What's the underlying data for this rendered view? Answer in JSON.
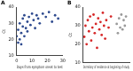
{
  "chart_data": [
    {
      "type": "scatter",
      "title": "A",
      "x_label": "Days from symptom onset to test",
      "y_label": "Ct",
      "x": [
        0,
        1,
        1,
        2,
        2,
        3,
        3,
        4,
        4,
        5,
        5,
        6,
        7,
        7,
        8,
        9,
        10,
        11,
        12,
        13,
        14,
        15,
        17,
        19,
        21,
        23,
        25,
        27
      ],
      "values": [
        22,
        18,
        26,
        20,
        30,
        17,
        24,
        28,
        33,
        22,
        35,
        27,
        31,
        25,
        34,
        29,
        36,
        32,
        27,
        35,
        33,
        30,
        36,
        34,
        37,
        31,
        35,
        33
      ],
      "color": "#2f4b8f",
      "xlim": [
        0,
        30
      ],
      "xticks": [
        0,
        10,
        20,
        30
      ],
      "ylim": [
        10,
        40
      ],
      "yticks": [
        10,
        20,
        30,
        40
      ],
      "grid": false,
      "marker": "circle"
    },
    {
      "type": "scatter",
      "title": "B",
      "x_label": "Dormitory of residence at beginning of study",
      "y_label": "Ct",
      "x": [
        1,
        2,
        3,
        4,
        5,
        6,
        7,
        8,
        9,
        10,
        11,
        12,
        13,
        14,
        15,
        16,
        17,
        18,
        19,
        20,
        22,
        24,
        29,
        30,
        31,
        32,
        33,
        34,
        35,
        36,
        37
      ],
      "values": [
        24,
        30,
        20,
        33,
        27,
        35,
        22,
        29,
        36,
        26,
        31,
        18,
        34,
        28,
        32,
        25,
        37,
        30,
        23,
        33,
        29,
        35,
        31,
        26,
        34,
        29,
        36,
        28,
        33,
        30,
        35
      ],
      "colors": [
        "#d62728",
        "#d62728",
        "#d62728",
        "#d62728",
        "#d62728",
        "#d62728",
        "#d62728",
        "#d62728",
        "#d62728",
        "#d62728",
        "#d62728",
        "#d62728",
        "#d62728",
        "#d62728",
        "#d62728",
        "#d62728",
        "#d62728",
        "#d62728",
        "#d62728",
        "#d62728",
        "#d62728",
        "#d62728",
        "#999999",
        "#999999",
        "#999999",
        "#999999",
        "#999999",
        "#999999",
        "#999999",
        "#999999",
        "#999999"
      ],
      "xlim": [
        0,
        40
      ],
      "ylim": [
        10,
        40
      ],
      "yticks": [
        10,
        20,
        30,
        40
      ],
      "grid": false,
      "marker": "circle",
      "tick_labels": "y"
    }
  ]
}
